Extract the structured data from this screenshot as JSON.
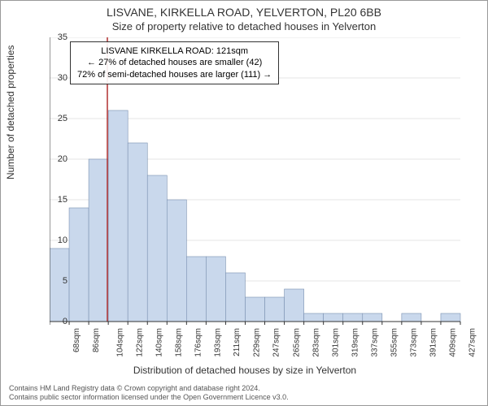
{
  "title": "LISVANE, KIRKELLA ROAD, YELVERTON, PL20 6BB",
  "subtitle": "Size of property relative to detached houses in Yelverton",
  "annotation": {
    "line1": "LISVANE KIRKELLA ROAD: 121sqm",
    "line2": "← 27% of detached houses are smaller (42)",
    "line3": "72% of semi-detached houses are larger (111) →"
  },
  "ylabel": "Number of detached properties",
  "xlabel": "Distribution of detached houses by size in Yelverton",
  "footer": {
    "line1": "Contains HM Land Registry data © Crown copyright and database right 2024.",
    "line2": "Contains public sector information licensed under the Open Government Licence v3.0."
  },
  "chart": {
    "type": "histogram",
    "ylim": [
      0,
      35
    ],
    "yticks": [
      0,
      5,
      10,
      15,
      20,
      25,
      30,
      35
    ],
    "xticks": [
      "68sqm",
      "86sqm",
      "104sqm",
      "122sqm",
      "140sqm",
      "158sqm",
      "176sqm",
      "193sqm",
      "211sqm",
      "229sqm",
      "247sqm",
      "265sqm",
      "283sqm",
      "301sqm",
      "319sqm",
      "337sqm",
      "355sqm",
      "373sqm",
      "391sqm",
      "409sqm",
      "427sqm"
    ],
    "values": [
      9,
      14,
      20,
      26,
      22,
      18,
      15,
      8,
      8,
      6,
      3,
      3,
      4,
      1,
      1,
      1,
      1,
      0,
      1,
      0,
      1
    ],
    "bar_color": "#c9d8ec",
    "bar_border": "#7a90b0",
    "grid_color": "#cccccc",
    "axis_color": "#333333",
    "marker_x_value": 121,
    "marker_x_min": 68,
    "marker_x_max": 445,
    "marker_color": "#b03030",
    "background": "#ffffff",
    "title_fontsize": 14,
    "subtitle_fontsize": 13,
    "label_fontsize": 12,
    "tick_fontsize": 11
  }
}
